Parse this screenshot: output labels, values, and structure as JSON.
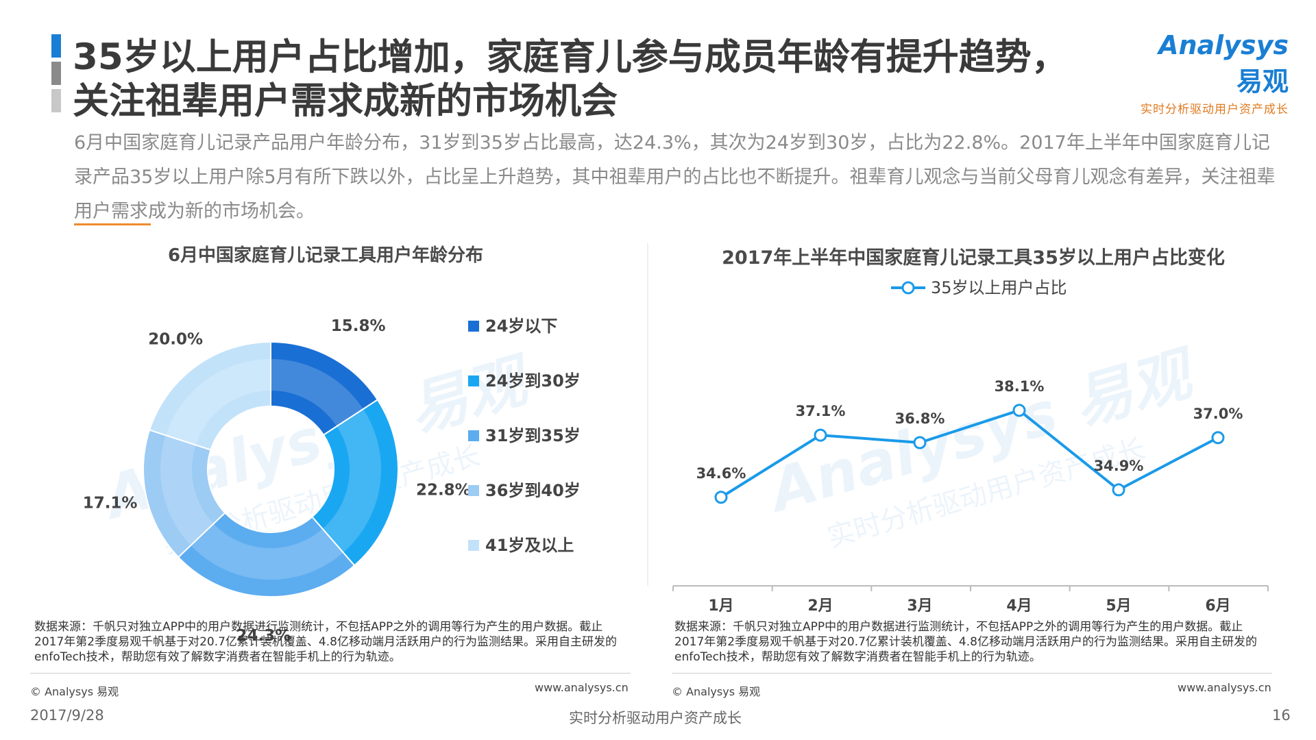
{
  "page": {
    "title": "35岁以上用户占比增加，家庭育儿参与成员年龄有提升趋势，关注祖辈用户需求成新的市场机会",
    "summary": "6月中国家庭育儿记录产品用户年龄分布，31岁到35岁占比最高，达24.3%，其次为24岁到30岁，占比为22.8%。2017年上半年中国家庭育儿记录产品35岁以上用户除5月有所下跌以外，占比呈上升趋势，其中祖辈用户的占比也不断提升。祖辈育儿观念与当前父母育儿观念有差异，关注祖辈用户需求成为新的市场机会。",
    "accent_colors": [
      "#1a7fd4",
      "#8a8a8a",
      "#c8c8c8"
    ],
    "underline_color": "#f08a2c"
  },
  "logo": {
    "brand": "Analysys",
    "brand_cn": "易观",
    "tagline": "实时分析驱动用户资产成长",
    "color": "#1a7fd4",
    "tagline_color": "#e07a1f"
  },
  "watermark": {
    "brand": "Analysys 易观",
    "tagline": "实时分析驱动用户资产成长"
  },
  "chart_data": [
    {
      "type": "pie",
      "variant": "donut",
      "title": "6月中国家庭育儿记录工具用户年龄分布",
      "categories": [
        "24岁以下",
        "24岁到30岁",
        "31岁到35岁",
        "36岁到40岁",
        "41岁及以上"
      ],
      "values": [
        15.8,
        22.8,
        24.3,
        17.1,
        20.0
      ],
      "labels": [
        "15.8%",
        "22.8%",
        "24.3%",
        "17.1%",
        "20.0%"
      ],
      "colors": [
        "#1a6fd4",
        "#1aa7f2",
        "#5cacf0",
        "#9ccbf4",
        "#c2e2fa"
      ],
      "legend_position": "right"
    },
    {
      "type": "line",
      "title": "2017年上半年中国家庭育儿记录工具35岁以上用户占比变化",
      "x": [
        "1月",
        "2月",
        "3月",
        "4月",
        "5月",
        "6月"
      ],
      "series": [
        {
          "name": "35岁以上用户占比",
          "values": [
            34.6,
            37.1,
            36.8,
            38.1,
            34.9,
            37.0
          ],
          "labels": [
            "34.6%",
            "37.1%",
            "36.8%",
            "38.1%",
            "34.9%",
            "37.0%"
          ],
          "color": "#1a9ae8"
        }
      ],
      "ylim": [
        32,
        40
      ],
      "grid": false,
      "legend_position": "top"
    }
  ],
  "sources": {
    "left": "数据来源：千帆只对独立APP中的用户数据进行监测统计，不包括APP之外的调用等行为产生的用户数据。截止2017年第2季度易观千帆基于对20.7亿累计装机覆盖、4.8亿移动端月活跃用户的行为监测结果。采用自主研发的enfoTech技术，帮助您有效了解数字消费者在智能手机上的行为轨迹。",
    "right": "数据来源：千帆只对独立APP中的用户数据进行监测统计，不包括APP之外的调用等行为产生的用户数据。截止2017年第2季度易观千帆基于对20.7亿累计装机覆盖、4.8亿移动端月活跃用户的行为监测结果。采用自主研发的enfoTech技术，帮助您有效了解数字消费者在智能手机上的行为轨迹。",
    "copyright": "© Analysys 易观",
    "website": "www.analysys.cn"
  },
  "footer": {
    "date": "2017/9/28",
    "slogan": "实时分析驱动用户资产成长",
    "page_number": "16"
  }
}
